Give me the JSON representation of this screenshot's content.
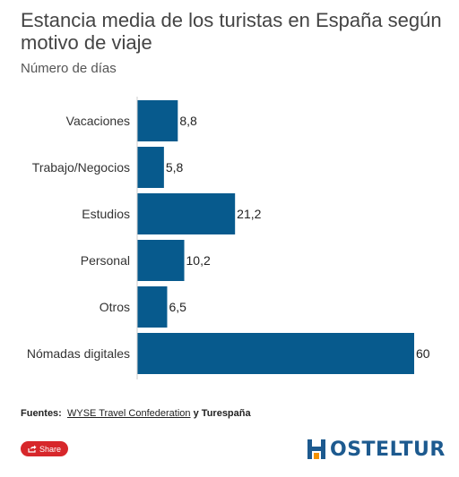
{
  "title": "Estancia media de los turistas en España según motivo de viaje",
  "subtitle": "Número de días",
  "source": {
    "label": "Fuentes:",
    "link_text": "WYSE Travel Confederation",
    "conjunction": "y",
    "second": "Turespaña"
  },
  "share": {
    "label": "Share",
    "icon": "share-icon",
    "color": "#d7272b"
  },
  "logo": {
    "text": "OSTELTUR",
    "icon": "hosteltur-h-icon",
    "color": "#1d5a8f"
  },
  "colors": {
    "bar": "#075a8d",
    "axis": "#cccccc"
  },
  "chart_data": {
    "type": "bar",
    "orientation": "horizontal",
    "categories": [
      "Vacaciones",
      "Trabajo/Negocios",
      "Estudios",
      "Personal",
      "Otros",
      "Nómadas digitales"
    ],
    "values": [
      8.8,
      5.8,
      21.2,
      10.2,
      6.5,
      60
    ],
    "value_labels": [
      "8,8",
      "5,8",
      "21,2",
      "10,2",
      "6,5",
      "60"
    ],
    "xlim": [
      0,
      60
    ],
    "grid": false,
    "legend": "none"
  }
}
